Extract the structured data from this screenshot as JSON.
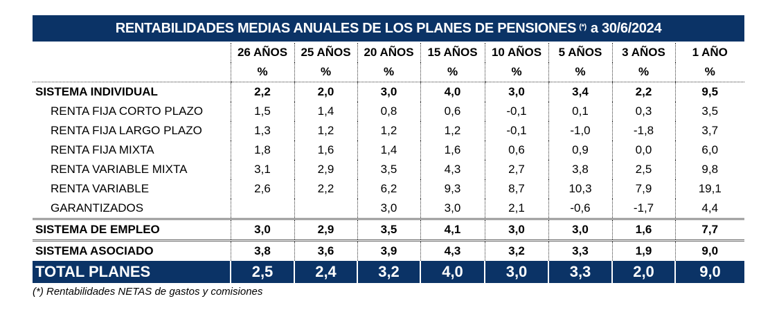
{
  "title": {
    "text": "RENTABILIDADES MEDIAS ANUALES DE LOS PLANES DE PENSIONES",
    "mark": "(*)",
    "suffix": "a 30/6/2024"
  },
  "columns": [
    "26 AÑOS",
    "25 AÑOS",
    "20 AÑOS",
    "15 AÑOS",
    "10 AÑOS",
    "5 AÑOS",
    "3 AÑOS",
    "1 AÑO"
  ],
  "unit": "%",
  "rows": [
    {
      "label": "SISTEMA INDIVIDUAL",
      "type": "group",
      "values": [
        "2,2",
        "2,0",
        "3,0",
        "4,0",
        "3,0",
        "3,4",
        "2,2",
        "9,5"
      ]
    },
    {
      "label": "RENTA FIJA CORTO PLAZO",
      "type": "sub",
      "values": [
        "1,5",
        "1,4",
        "0,8",
        "0,6",
        "-0,1",
        "0,1",
        "0,3",
        "3,5"
      ]
    },
    {
      "label": "RENTA FIJA LARGO PLAZO",
      "type": "sub",
      "values": [
        "1,3",
        "1,2",
        "1,2",
        "1,2",
        "-0,1",
        "-1,0",
        "-1,8",
        "3,7"
      ]
    },
    {
      "label": "RENTA FIJA MIXTA",
      "type": "sub",
      "values": [
        "1,8",
        "1,6",
        "1,4",
        "1,6",
        "0,6",
        "0,9",
        "0,0",
        "6,0"
      ]
    },
    {
      "label": "RENTA VARIABLE MIXTA",
      "type": "sub",
      "values": [
        "3,1",
        "2,9",
        "3,5",
        "4,3",
        "2,7",
        "3,8",
        "2,5",
        "9,8"
      ]
    },
    {
      "label": "RENTA VARIABLE",
      "type": "sub",
      "values": [
        "2,6",
        "2,2",
        "6,2",
        "9,3",
        "8,7",
        "10,3",
        "7,9",
        "19,1"
      ]
    },
    {
      "label": "GARANTIZADOS",
      "type": "sub",
      "values": [
        "",
        "",
        "3,0",
        "3,0",
        "2,1",
        "-0,6",
        "-1,7",
        "4,4"
      ]
    },
    {
      "label": "SISTEMA DE EMPLEO",
      "type": "group-sep",
      "values": [
        "3,0",
        "2,9",
        "3,5",
        "4,1",
        "3,0",
        "3,0",
        "1,6",
        "7,7"
      ]
    },
    {
      "label": "SISTEMA ASOCIADO",
      "type": "group-sep",
      "values": [
        "3,8",
        "3,6",
        "3,9",
        "4,3",
        "3,2",
        "3,3",
        "1,9",
        "9,0"
      ]
    },
    {
      "label": "TOTAL PLANES",
      "type": "total",
      "values": [
        "2,5",
        "2,4",
        "3,2",
        "4,0",
        "3,0",
        "3,3",
        "2,0",
        "9,0"
      ]
    }
  ],
  "footnote": "(*) Rentabilidades NETAS de gastos y comisiones",
  "colors": {
    "header_bg": "#0b3366",
    "header_text": "#ffffff"
  }
}
